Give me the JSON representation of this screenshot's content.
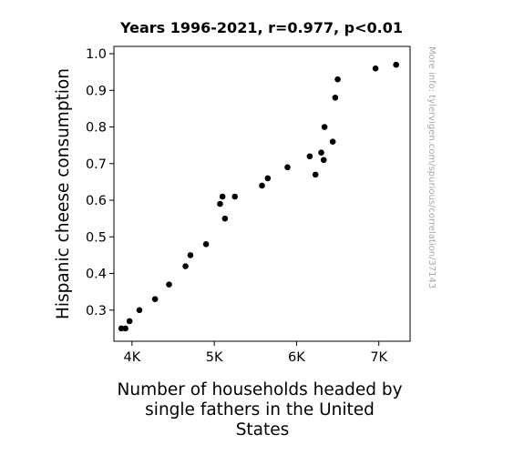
{
  "chart_data": {
    "type": "scatter",
    "title": "Years 1996-2021, r=0.977, p<0.01",
    "xlabel_lines": [
      "Number of households headed by",
      "single fathers in the United",
      "States"
    ],
    "ylabel": "Hispanic cheese consumption",
    "watermark": "More info: tylervigen.com/spurious/correlation/37143",
    "xlim": [
      3780,
      7380
    ],
    "ylim": [
      0.215,
      1.02
    ],
    "xticks": [
      {
        "value": 4000,
        "label": "4K"
      },
      {
        "value": 5000,
        "label": "5K"
      },
      {
        "value": 6000,
        "label": "6K"
      },
      {
        "value": 7000,
        "label": "7K"
      }
    ],
    "yticks": [
      {
        "value": 0.3,
        "label": "0.3"
      },
      {
        "value": 0.4,
        "label": "0.4"
      },
      {
        "value": 0.5,
        "label": "0.5"
      },
      {
        "value": 0.6,
        "label": "0.6"
      },
      {
        "value": 0.7,
        "label": "0.7"
      },
      {
        "value": 0.8,
        "label": "0.8"
      },
      {
        "value": 0.9,
        "label": "0.9"
      },
      {
        "value": 1.0,
        "label": "1.0"
      }
    ],
    "marker_color": "#000000",
    "points": [
      {
        "x": 3870,
        "y": 0.25
      },
      {
        "x": 3920,
        "y": 0.25
      },
      {
        "x": 3970,
        "y": 0.27
      },
      {
        "x": 4090,
        "y": 0.3
      },
      {
        "x": 4280,
        "y": 0.33
      },
      {
        "x": 4450,
        "y": 0.37
      },
      {
        "x": 4650,
        "y": 0.42
      },
      {
        "x": 4710,
        "y": 0.45
      },
      {
        "x": 4900,
        "y": 0.48
      },
      {
        "x": 5070,
        "y": 0.59
      },
      {
        "x": 5100,
        "y": 0.61
      },
      {
        "x": 5130,
        "y": 0.55
      },
      {
        "x": 5250,
        "y": 0.61
      },
      {
        "x": 5580,
        "y": 0.64
      },
      {
        "x": 5650,
        "y": 0.66
      },
      {
        "x": 5890,
        "y": 0.69
      },
      {
        "x": 6160,
        "y": 0.72
      },
      {
        "x": 6230,
        "y": 0.67
      },
      {
        "x": 6300,
        "y": 0.73
      },
      {
        "x": 6330,
        "y": 0.71
      },
      {
        "x": 6340,
        "y": 0.8
      },
      {
        "x": 6440,
        "y": 0.76
      },
      {
        "x": 6470,
        "y": 0.88
      },
      {
        "x": 6500,
        "y": 0.93
      },
      {
        "x": 6960,
        "y": 0.96
      },
      {
        "x": 7210,
        "y": 0.97
      }
    ]
  }
}
